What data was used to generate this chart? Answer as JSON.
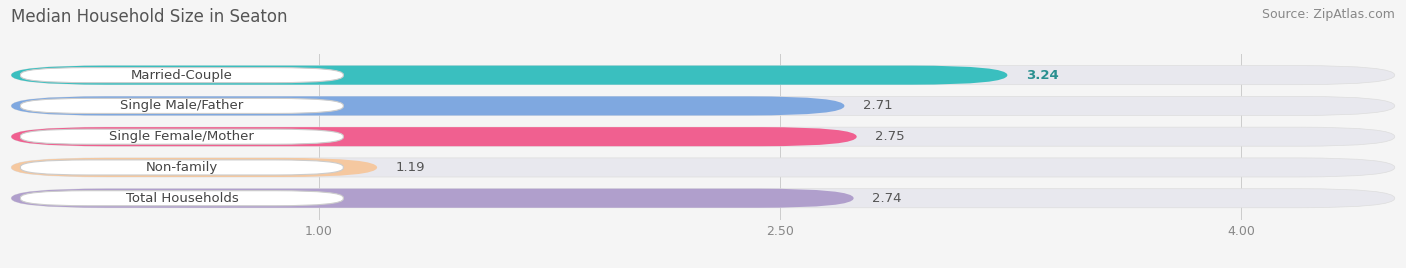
{
  "title": "Median Household Size in Seaton",
  "source": "Source: ZipAtlas.com",
  "categories": [
    "Married-Couple",
    "Single Male/Father",
    "Single Female/Mother",
    "Non-family",
    "Total Households"
  ],
  "values": [
    3.24,
    2.71,
    2.75,
    1.19,
    2.74
  ],
  "bar_colors": [
    "#3abfbf",
    "#7fa8e0",
    "#f06090",
    "#f5c8a0",
    "#b09fcc"
  ],
  "xlim_min": 0.0,
  "xlim_max": 4.5,
  "xstart": 0.0,
  "xticks": [
    1.0,
    2.5,
    4.0
  ],
  "xtick_labels": [
    "1.00",
    "2.50",
    "4.00"
  ],
  "title_fontsize": 12,
  "source_fontsize": 9,
  "label_fontsize": 9.5,
  "value_fontsize": 9.5,
  "bar_height": 0.62,
  "background_color": "#f5f5f5",
  "bar_bg_color": "#e8e8ee",
  "value_bold": [
    true,
    false,
    false,
    false,
    false
  ],
  "value_colors": [
    "#2a9090",
    "#555555",
    "#555555",
    "#555555",
    "#555555"
  ]
}
